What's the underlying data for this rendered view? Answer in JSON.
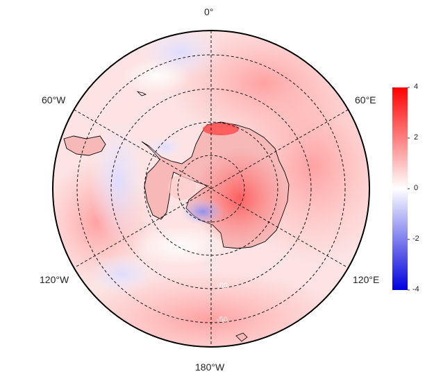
{
  "map": {
    "projection": "south-polar-stereographic",
    "meridian_labels": {
      "top": "0°",
      "upper_left": "60°W",
      "upper_right": "60°E",
      "lower_left": "120°W",
      "lower_right": "120°E",
      "bottom": "180°W"
    },
    "ring_labels": [
      "-60",
      "-50"
    ],
    "colorbar": {
      "ticks": [
        "4",
        "2",
        "0",
        "-2",
        "-4"
      ],
      "range": [
        -4,
        4
      ],
      "colors": {
        "high": "#ff0000",
        "mid": "#ffffff",
        "low": "#0000dd"
      }
    },
    "colors": {
      "land_outline": "#000000",
      "grid": "#000000",
      "border": "#000000"
    }
  }
}
